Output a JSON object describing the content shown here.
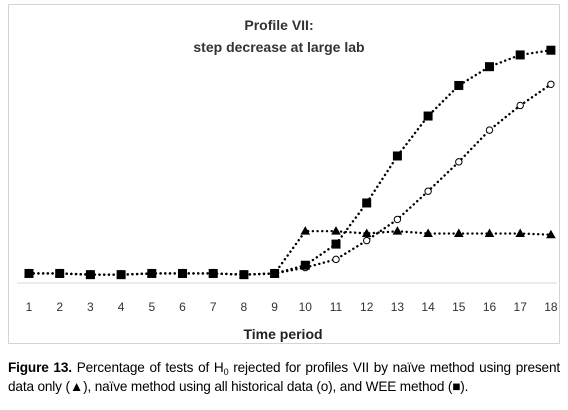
{
  "chart_data": {
    "type": "line",
    "title_line1": "Profile VII:",
    "title_line2": "step decrease at large lab",
    "xlabel": "Time period",
    "ylabel": "",
    "x": [
      1,
      2,
      3,
      4,
      5,
      6,
      7,
      8,
      9,
      10,
      11,
      12,
      13,
      14,
      15,
      16,
      17,
      18
    ],
    "ylim": [
      0,
      100
    ],
    "grid": false,
    "legend": "none",
    "series": [
      {
        "marker": "triangle",
        "values": [
          1.5,
          1.5,
          1.0,
          1.0,
          1.5,
          1.5,
          1.5,
          1.0,
          1.5,
          19.5,
          19.5,
          18.5,
          19.5,
          18.5,
          18.5,
          18.5,
          18.5,
          18.0
        ]
      },
      {
        "marker": "open-circle",
        "values": [
          1.5,
          1.5,
          1.0,
          1.0,
          1.5,
          1.5,
          1.5,
          1.0,
          1.5,
          4.0,
          7.5,
          15.5,
          24.5,
          36.5,
          49.0,
          62.5,
          73.0,
          82.0
        ]
      },
      {
        "marker": "filled-square",
        "values": [
          1.5,
          1.5,
          1.0,
          1.0,
          1.5,
          1.5,
          1.5,
          1.0,
          1.5,
          5.0,
          14.0,
          31.5,
          51.5,
          68.5,
          81.5,
          89.5,
          94.5,
          96.5
        ]
      }
    ]
  },
  "caption": {
    "label": "Figure 13.",
    "text_before_sub": "Percentage of tests of H",
    "subscript": "0",
    "text_after_sub": " rejected for profiles VII by naïve method using present data only (",
    "triangle_symbol": "▲",
    "text_mid": "), naïve method using all historical data (o), and WEE method (",
    "square_symbol": "■",
    "text_end": ")."
  }
}
